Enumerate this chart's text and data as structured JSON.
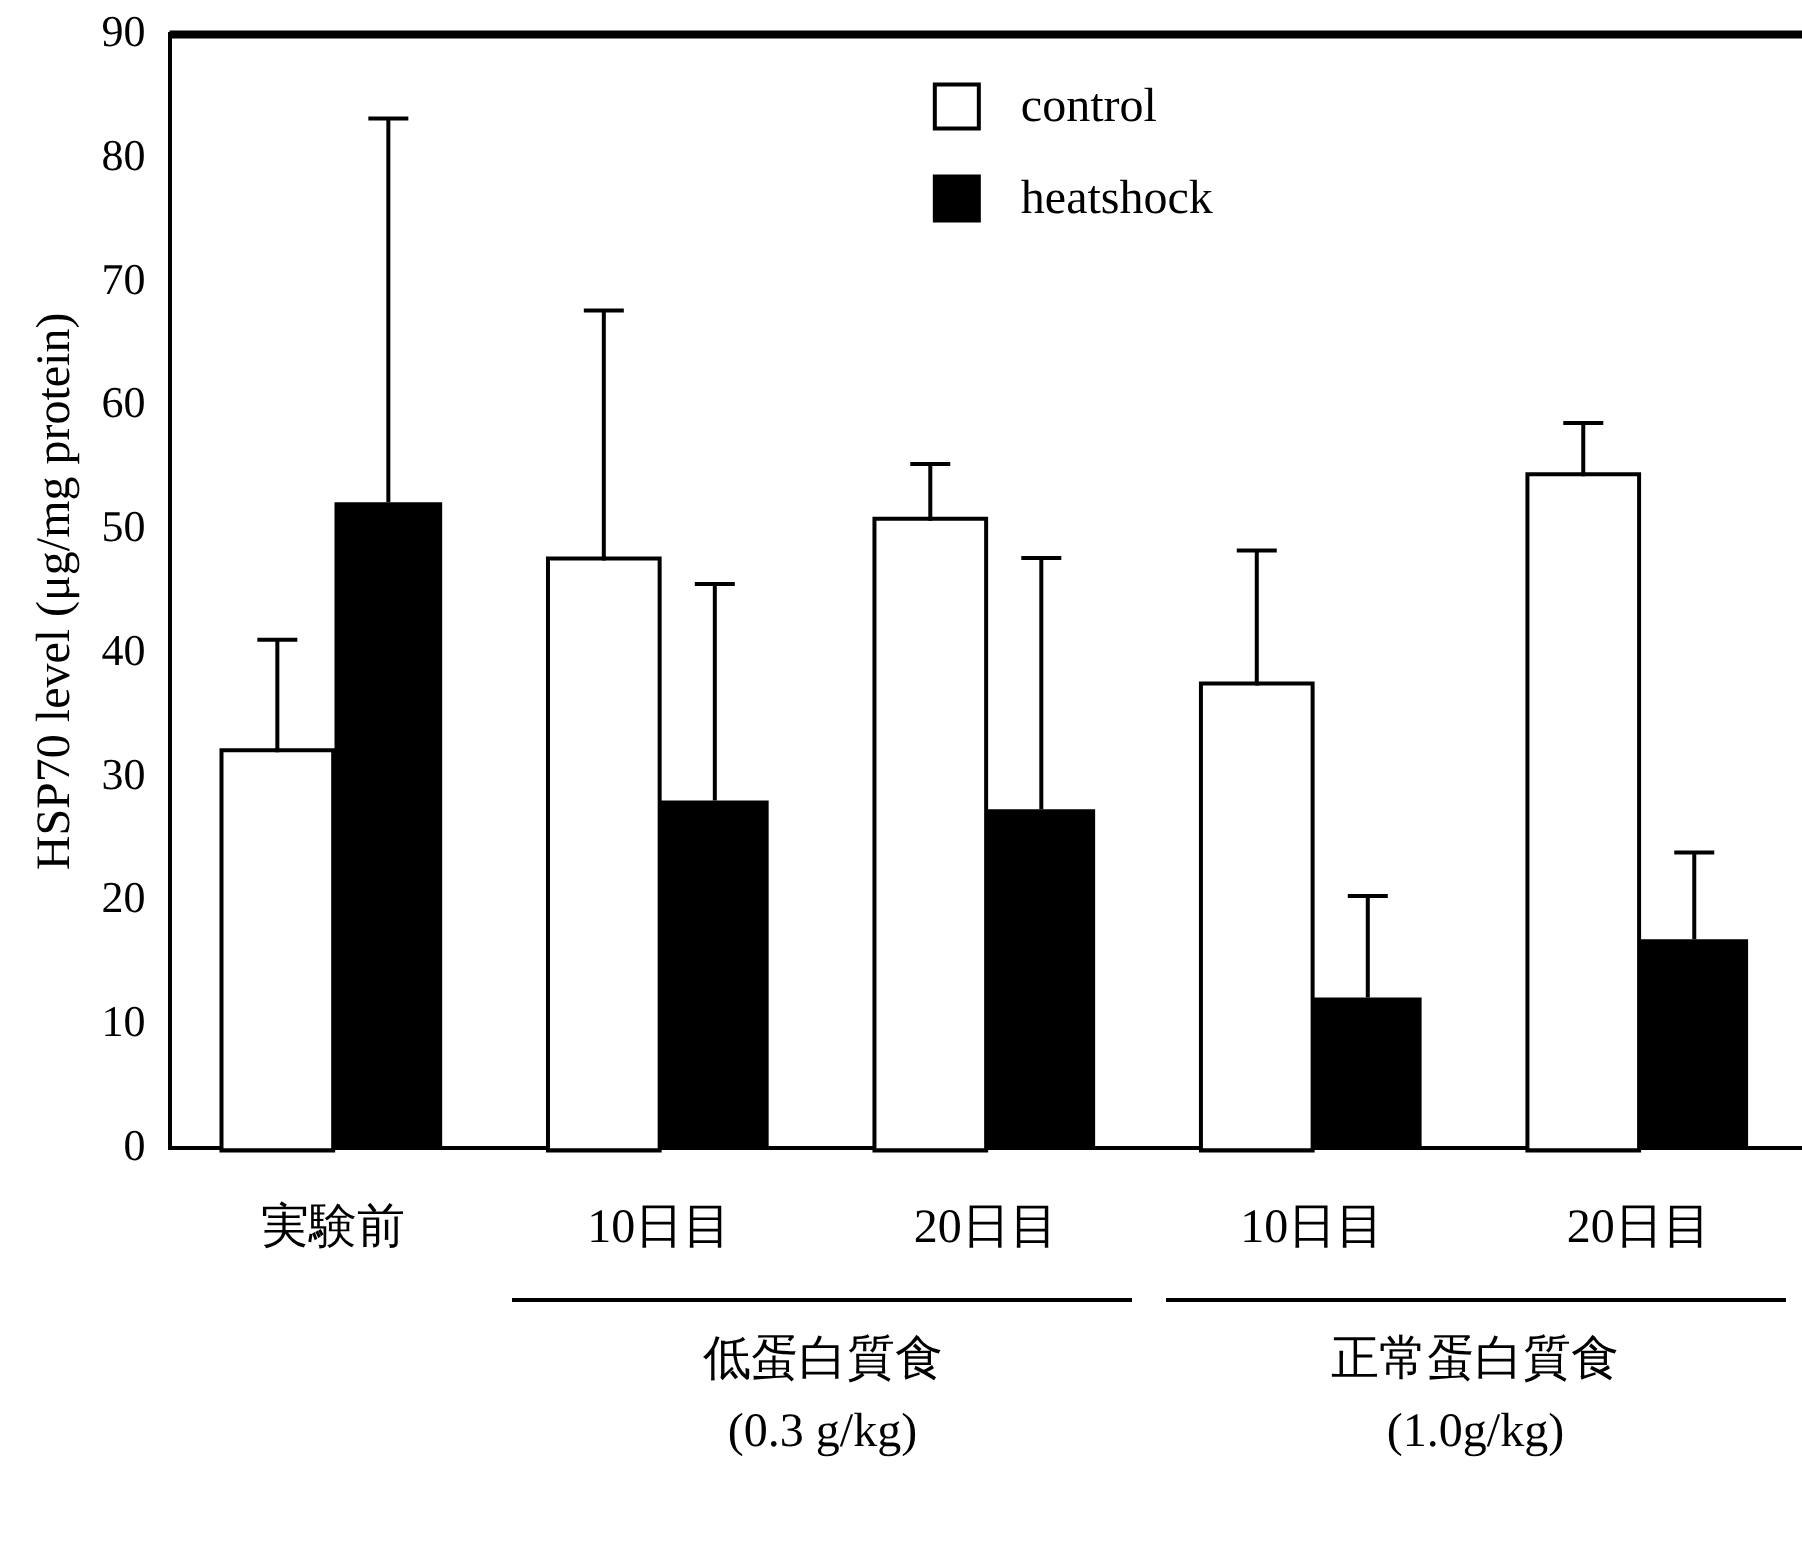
{
  "chart_data": {
    "type": "bar",
    "categories": [
      "実験前",
      "10日目",
      "20日目",
      "10日目",
      "20日目"
    ],
    "series": [
      {
        "name": "control",
        "color": "#ffffff",
        "values": [
          32.0,
          47.5,
          50.7,
          37.4,
          54.3
        ],
        "errors": [
          [
            32.0,
            41.1
          ],
          [
            47.5,
            67.7
          ],
          [
            50.7,
            55.3
          ],
          [
            37.4,
            48.3
          ],
          [
            54.3,
            58.6
          ]
        ]
      },
      {
        "name": "heatshock",
        "color": "#000000",
        "values": [
          52.2,
          28.1,
          27.4,
          12.2,
          16.9
        ],
        "errors": [
          [
            52.2,
            83.2
          ],
          [
            28.1,
            45.6
          ],
          [
            27.4,
            47.7
          ],
          [
            12.2,
            20.4
          ],
          [
            16.9,
            23.9
          ]
        ]
      }
    ],
    "ylabel": "HSP70 level (μg/mg protein)",
    "ylim": [
      0,
      90
    ],
    "yticks": [
      0,
      10,
      20,
      30,
      40,
      50,
      60,
      70,
      80,
      90
    ],
    "legend": "top right",
    "grid": false,
    "annotations": [
      "低蛋白質食\n(0.3 g/kg)",
      "正常蛋白質食\n(1.0g/kg)"
    ]
  }
}
